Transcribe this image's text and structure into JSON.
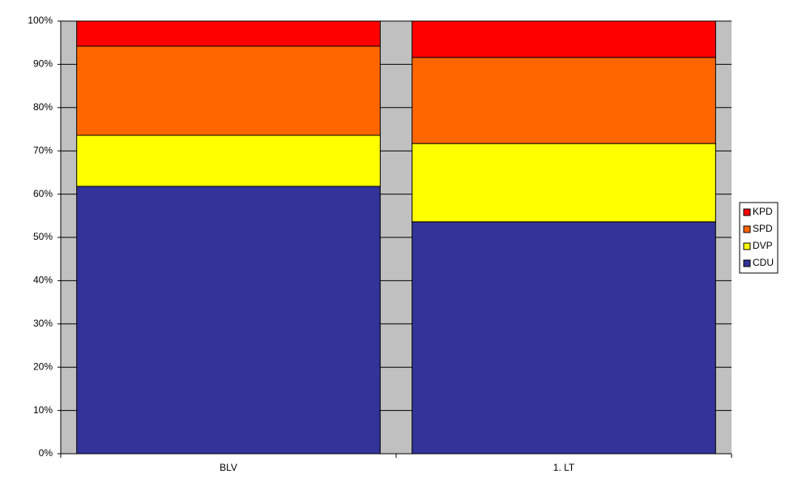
{
  "chart_data": {
    "type": "stacked_bar",
    "categories": [
      "BLV",
      "1. LT"
    ],
    "series": [
      {
        "name": "CDU",
        "color": "#333399",
        "values": [
          61.8,
          53.6
        ]
      },
      {
        "name": "DVP",
        "color": "#ffff00",
        "values": [
          11.8,
          18.1
        ]
      },
      {
        "name": "SPD",
        "color": "#ff6600",
        "values": [
          20.6,
          19.9
        ]
      },
      {
        "name": "KPD",
        "color": "#ff0000",
        "values": [
          5.8,
          8.4
        ]
      }
    ],
    "ylim": [
      0,
      100
    ],
    "yticks": [
      {
        "value": 0,
        "label": "0%"
      },
      {
        "value": 10,
        "label": "10%"
      },
      {
        "value": 20,
        "label": "20%"
      },
      {
        "value": 30,
        "label": "30%"
      },
      {
        "value": 40,
        "label": "40%"
      },
      {
        "value": 50,
        "label": "50%"
      },
      {
        "value": 60,
        "label": "60%"
      },
      {
        "value": 70,
        "label": "70%"
      },
      {
        "value": 80,
        "label": "80%"
      },
      {
        "value": 90,
        "label": "90%"
      },
      {
        "value": 100,
        "label": "100%"
      }
    ],
    "grid": true,
    "plot_background": "#c0c0c0",
    "legend": "right"
  }
}
